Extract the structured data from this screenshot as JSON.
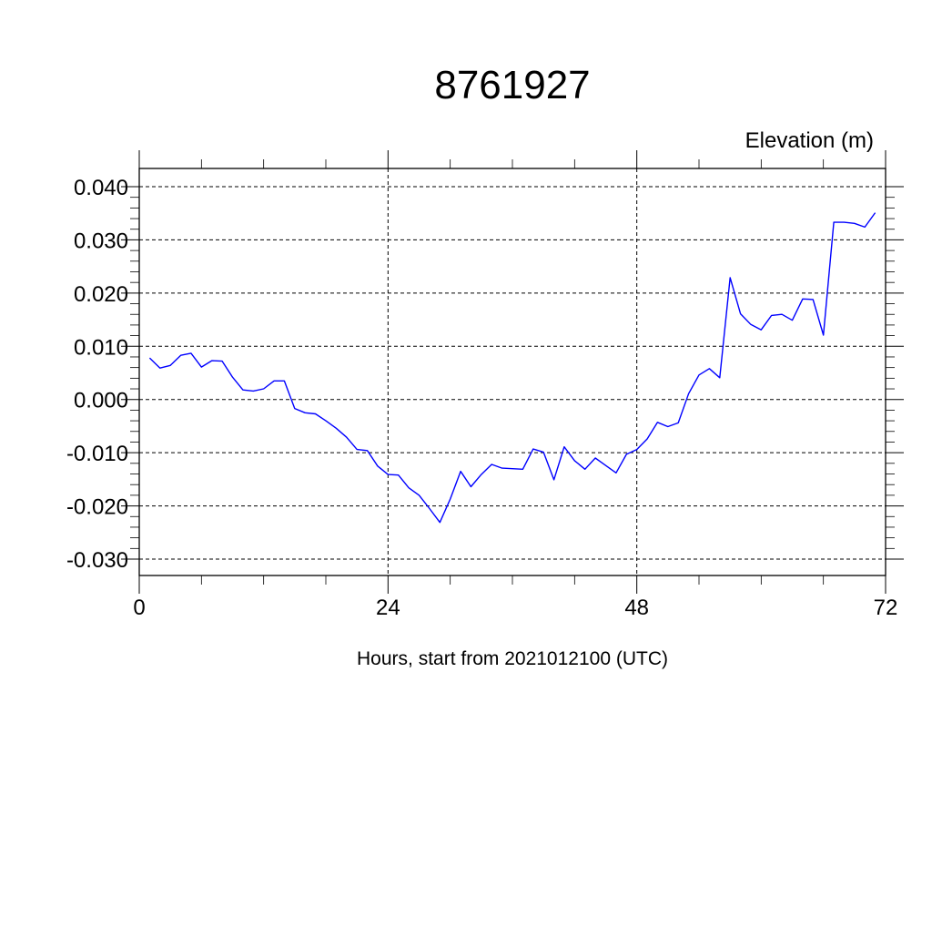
{
  "chart_data": {
    "type": "line",
    "title": "8761927",
    "ylabel": "Elevation (m)",
    "xlabel": "Hours, start from 2021012100 (UTC)",
    "xlim": [
      0,
      72
    ],
    "ylim": [
      -0.03,
      0.04
    ],
    "x_ticks": [
      0,
      24,
      48,
      72
    ],
    "x_tick_labels": [
      "0",
      "24",
      "48",
      "72"
    ],
    "y_ticks": [
      -0.03,
      -0.02,
      -0.01,
      0.0,
      0.01,
      0.02,
      0.03,
      0.04
    ],
    "y_tick_labels": [
      "-0.030",
      "-0.020",
      "-0.010",
      "0.000",
      "0.010",
      "0.020",
      "0.030",
      "0.040"
    ],
    "grid": true,
    "line_color": "#0000ff",
    "series": [
      {
        "x": [
          1,
          2,
          3,
          4,
          5,
          6,
          7,
          8,
          9,
          10,
          11,
          12,
          13,
          14,
          15,
          16,
          17,
          18,
          19,
          20,
          21,
          22,
          23,
          24,
          25,
          26,
          27,
          28,
          29,
          30,
          31,
          32,
          33,
          34,
          35,
          36,
          37,
          38,
          39,
          40,
          41,
          42,
          43,
          44,
          45,
          46,
          47,
          48,
          49,
          50,
          51,
          52,
          53,
          54,
          55,
          56,
          57,
          58,
          59,
          60,
          61,
          62,
          63,
          64,
          65,
          66,
          67,
          68,
          69,
          70,
          71
        ],
        "values": [
          0.0078,
          0.0059,
          0.0064,
          0.0083,
          0.0087,
          0.0061,
          0.0073,
          0.0072,
          0.0042,
          0.0018,
          0.0016,
          0.002,
          0.0035,
          0.0035,
          -0.0017,
          -0.0025,
          -0.0027,
          -0.004,
          -0.0054,
          -0.0071,
          -0.0094,
          -0.0096,
          -0.0125,
          -0.0141,
          -0.0142,
          -0.0166,
          -0.018,
          -0.0205,
          -0.0231,
          -0.0187,
          -0.0135,
          -0.0164,
          -0.0141,
          -0.0122,
          -0.0129,
          -0.013,
          -0.0131,
          -0.0093,
          -0.0099,
          -0.0151,
          -0.0089,
          -0.0115,
          -0.0131,
          -0.011,
          -0.0124,
          -0.0138,
          -0.0103,
          -0.0094,
          -0.0074,
          -0.0043,
          -0.0051,
          -0.0044,
          0.0011,
          0.0046,
          0.0058,
          0.0041,
          0.0229,
          0.0161,
          0.0141,
          0.0131,
          0.0158,
          0.016,
          0.0149,
          0.0189,
          0.0188,
          0.0121,
          0.0333,
          0.0333,
          0.0331,
          0.0324,
          0.0351
        ]
      }
    ]
  }
}
